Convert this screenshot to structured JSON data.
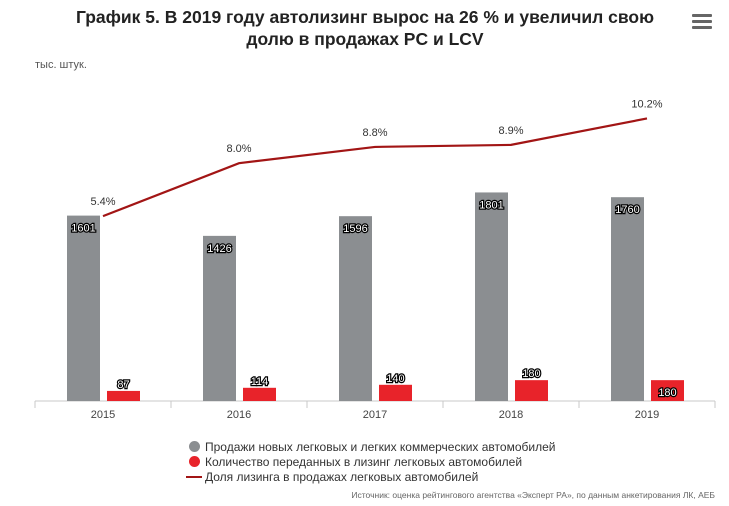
{
  "title_line1": "График 5. В 2019 году автолизинг вырос на 26 % и увеличил свою",
  "title_line2": "долю в продажах PC и LCV",
  "unit": "тыс. штук.",
  "source": "Источник: оценка рейтингового агентства «Эксперт РА», по данным анкетирования ЛК, АЕБ",
  "menu_icon": "hamburger-menu-icon",
  "chart_data": {
    "type": "bar+line",
    "categories": [
      "2015",
      "2016",
      "2017",
      "2018",
      "2019"
    ],
    "series": [
      {
        "name": "Продажи новых легковых и легких коммерческих автомобилей",
        "type": "bar",
        "color": "#8b8e91",
        "values": [
          1601,
          1426,
          1596,
          1801,
          1760
        ],
        "labels": [
          "1601",
          "1426",
          "1596",
          "1801",
          "1760"
        ]
      },
      {
        "name": "Количество переданных в лизинг легковых автомобилей",
        "type": "bar",
        "color": "#e8232a",
        "values": [
          87,
          114,
          140,
          180,
          180
        ],
        "labels": [
          "87",
          "114",
          "140",
          "180",
          "180"
        ]
      },
      {
        "name": "Доля лизинга в продажах легковых автомобилей",
        "type": "line",
        "color": "#a21515",
        "values": [
          5.4,
          8.0,
          8.8,
          8.9,
          10.2
        ],
        "labels": [
          "5.4%",
          "8.0%",
          "8.8%",
          "8.9%",
          "10.2%"
        ]
      }
    ],
    "bar_ylim": [
      0,
      2000
    ],
    "line_ylim": [
      0,
      12
    ],
    "legend_position": "bottom"
  }
}
